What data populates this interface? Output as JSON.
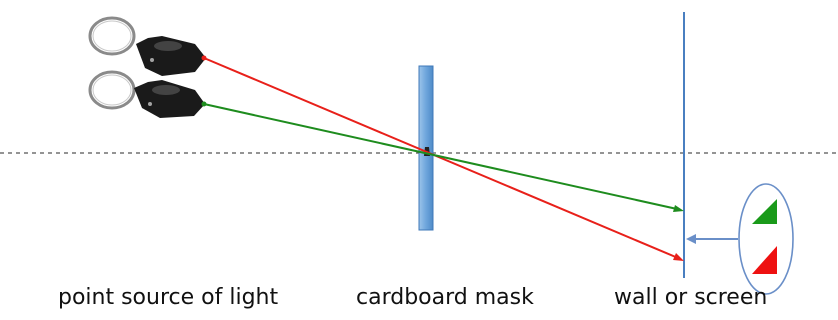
{
  "diagram": {
    "captions": {
      "source": "point source of light",
      "mask": "cardboard mask",
      "wall": "wall or screen"
    },
    "colors": {
      "red_ray": "#e8201a",
      "green_ray": "#1e8c1e",
      "mask_fill": "#6ea6dc",
      "wall_line": "#4a7fc0",
      "axis": "#555555",
      "callout": "#6a8fc8",
      "green_triangle": "#1a9a1a",
      "red_triangle": "#ee1111"
    },
    "icons": {
      "light_source": "keychain-flashlight-icon"
    }
  }
}
